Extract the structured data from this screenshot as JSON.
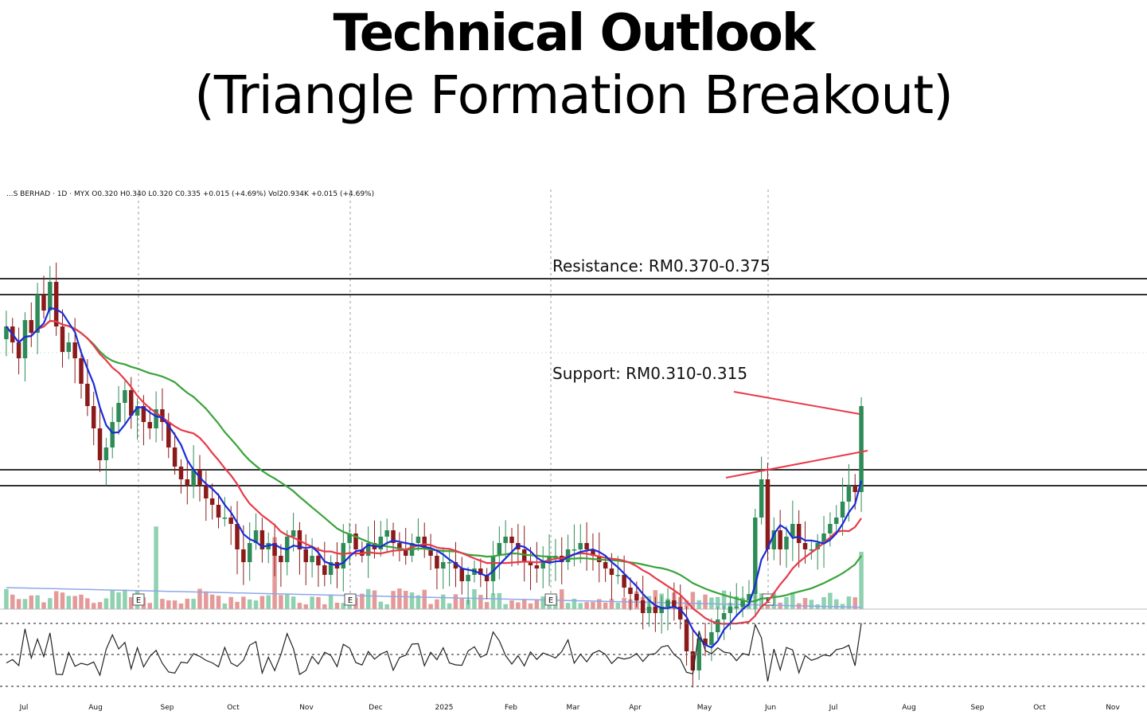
{
  "header": {
    "title": "Technical Outlook",
    "subtitle": "(Triangle Formation Breakout)"
  },
  "chart_data": {
    "type": "candlestick",
    "ticker_line": "...S BERHAD · 1D · MYX   O0.320  H0.340  L0.320  C0.335  +0.015 (+4.69%)   Vol20.934K  +0.015 (+4.69%)",
    "ylim": [
      0.27,
      0.4
    ],
    "x_ticks": [
      "Jul",
      "Aug",
      "Sep",
      "Oct",
      "Nov",
      "Dec",
      "2025",
      "Feb",
      "Mar",
      "Apr",
      "May",
      "Jun",
      "Jul",
      "Aug",
      "Sep",
      "Oct",
      "Nov"
    ],
    "annotations": [
      {
        "text": "Resistance:  RM0.370-0.375",
        "range": [
          0.37,
          0.375
        ]
      },
      {
        "text": "Support:  RM0.310-0.315",
        "range": [
          0.31,
          0.315
        ]
      }
    ],
    "earnings_marker": "E",
    "earnings_months": [
      "Aug",
      "Nov",
      "Feb",
      "May"
    ],
    "candles": [
      0.36,
      0.355,
      0.35,
      0.362,
      0.358,
      0.37,
      0.365,
      0.374,
      0.36,
      0.352,
      0.355,
      0.35,
      0.342,
      0.335,
      0.328,
      0.318,
      0.322,
      0.33,
      0.336,
      0.34,
      0.332,
      0.335,
      0.33,
      0.328,
      0.334,
      0.33,
      0.322,
      0.316,
      0.312,
      0.31,
      0.315,
      0.31,
      0.306,
      0.304,
      0.3,
      0.3,
      0.298,
      0.29,
      0.286,
      0.292,
      0.296,
      0.29,
      0.292,
      0.288,
      0.286,
      0.294,
      0.296,
      0.29,
      0.286,
      0.288,
      0.285,
      0.282,
      0.286,
      0.284,
      0.292,
      0.295,
      0.29,
      0.288,
      0.292,
      0.29,
      0.294,
      0.296,
      0.292,
      0.29,
      0.288,
      0.292,
      0.294,
      0.29,
      0.288,
      0.284,
      0.286,
      0.286,
      0.284,
      0.28,
      0.282,
      0.284,
      0.282,
      0.28,
      0.288,
      0.292,
      0.294,
      0.292,
      0.29,
      0.286,
      0.285,
      0.284,
      0.286,
      0.288,
      0.288,
      0.286,
      0.29,
      0.29,
      0.292,
      0.29,
      0.288,
      0.286,
      0.284,
      0.282,
      0.282,
      0.278,
      0.276,
      0.274,
      0.27,
      0.272,
      0.27,
      0.272,
      0.274,
      0.272,
      0.268,
      0.258,
      0.252,
      0.262,
      0.26,
      0.264,
      0.268,
      0.27,
      0.272,
      0.272,
      0.274,
      0.276,
      0.3,
      0.312,
      0.29,
      0.296,
      0.29,
      0.294,
      0.298,
      0.292,
      0.29,
      0.29,
      0.292,
      0.295,
      0.298,
      0.3,
      0.305,
      0.31,
      0.308,
      0.335
    ]
  }
}
